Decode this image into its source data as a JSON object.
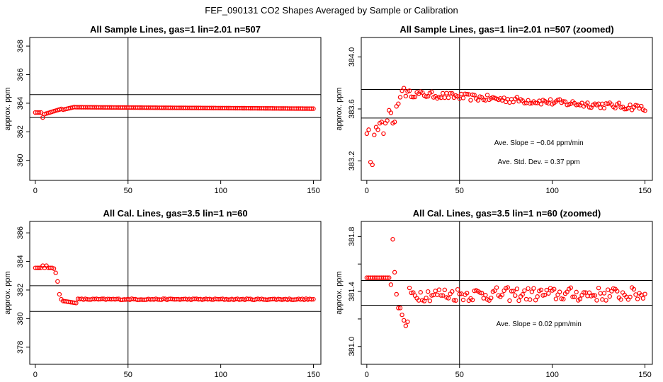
{
  "title": "FEF_090131  CO2 Shapes Averaged by Sample or Calibration",
  "chart_data": [
    {
      "type": "scatter",
      "title": "All Sample Lines, gas=1 lin=2.01 n=507",
      "ylabel": "approx. ppm",
      "xlim": [
        -3,
        154
      ],
      "ylim": [
        358.6,
        368.6
      ],
      "xticks": [
        0,
        50,
        100,
        150
      ],
      "yticks": [
        360,
        362,
        364,
        366,
        368
      ],
      "hlines": [
        364.6,
        363.0
      ],
      "vline": 50,
      "color": "#ff0000",
      "series": [
        {
          "shape": "sample_full"
        }
      ],
      "annotations": []
    },
    {
      "type": "scatter",
      "title": "All Sample Lines, gas=1 lin=2.01 n=507 (zoomed)",
      "ylabel": "approx. ppm",
      "xlim": [
        -3,
        154
      ],
      "ylim": [
        383.05,
        384.15
      ],
      "xticks": [
        0,
        50,
        100,
        150
      ],
      "yticks": [
        383.2,
        383.6,
        384.0
      ],
      "ytick_labels": [
        "383.2",
        "383.6",
        "384.0"
      ],
      "hlines": [
        383.75,
        383.53
      ],
      "vline": 50,
      "color": "#ff0000",
      "series": [
        {
          "shape": "sample_zoom"
        }
      ],
      "annotations": [
        "Ave. Slope = −0.04  ppm/min",
        "Ave. Std. Dev. = 0.37  ppm"
      ]
    },
    {
      "type": "scatter",
      "title": "All Cal. Lines, gas=3.5 lin=1 n=60",
      "ylabel": "approx. ppm",
      "xlim": [
        -3,
        154
      ],
      "ylim": [
        376.8,
        386.8
      ],
      "xticks": [
        0,
        50,
        100,
        150
      ],
      "yticks": [
        378,
        380,
        382,
        384,
        386
      ],
      "hlines": [
        382.3,
        380.5
      ],
      "vline": 50,
      "color": "#ff0000",
      "series": [
        {
          "shape": "cal_full"
        }
      ],
      "annotations": []
    },
    {
      "type": "scatter",
      "title": "All Cal. Lines, gas=3.5 lin=1 n=60 (zoomed)",
      "ylabel": "approx. ppm",
      "xlim": [
        -3,
        154
      ],
      "ylim": [
        380.87,
        381.91
      ],
      "xticks": [
        0,
        50,
        100,
        150
      ],
      "yticks": [
        381.0,
        381.2,
        381.4,
        381.6,
        381.8
      ],
      "ytick_labels": [
        "381.0",
        "",
        "381.4",
        "",
        "381.8"
      ],
      "hlines": [
        381.48,
        381.3
      ],
      "vline": 50,
      "color": "#ff0000",
      "series": [
        {
          "shape": "cal_zoom"
        }
      ],
      "annotations": [
        "Ave. Slope =  0.02  ppm/min"
      ]
    }
  ]
}
